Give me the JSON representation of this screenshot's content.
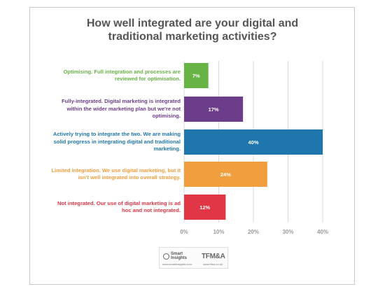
{
  "chart_data": {
    "type": "bar",
    "orientation": "horizontal",
    "title_lines": [
      "How well integrated are your digital and",
      "traditional marketing activities?"
    ],
    "categories": [
      {
        "lines": [
          "Optimising. Full integration and processes are",
          "reviewed for optimisation."
        ],
        "value": 7,
        "label": "7%",
        "color": "#67b346"
      },
      {
        "lines": [
          "Fully-integrated. Digital marketing is integrated",
          "within the wider marketing plan but we're not",
          "optimising."
        ],
        "value": 17,
        "label": "17%",
        "color": "#6c3d8a"
      },
      {
        "lines": [
          "Actively trying to integrate the two. We are making",
          "solid progress in integrating digital and traditional",
          "marketing."
        ],
        "value": 40,
        "label": "40%",
        "color": "#1f76ad"
      },
      {
        "lines": [
          "Limited integration. We use digital marketing, but it",
          "isn't well integrated into overall strategy."
        ],
        "value": 24,
        "label": "24%",
        "color": "#f19e3e"
      },
      {
        "lines": [
          "Not integrated. Our use of digital marketing is ad",
          "hoc and not integrated."
        ],
        "value": 12,
        "label": "12%",
        "color": "#e13645"
      }
    ],
    "x_ticks": [
      0,
      10,
      20,
      30,
      40
    ],
    "x_tick_labels": [
      "0%",
      "10%",
      "20%",
      "30%",
      "40%"
    ],
    "xlim": [
      0,
      40
    ],
    "grid": true,
    "legend": "none"
  },
  "logos": {
    "smart_insights": [
      "Smart",
      "Insights"
    ],
    "smart_insights_url": "www.smartinsights.com",
    "tfma": "TFM&A",
    "tfma_url": "www.tfma.co.uk"
  }
}
